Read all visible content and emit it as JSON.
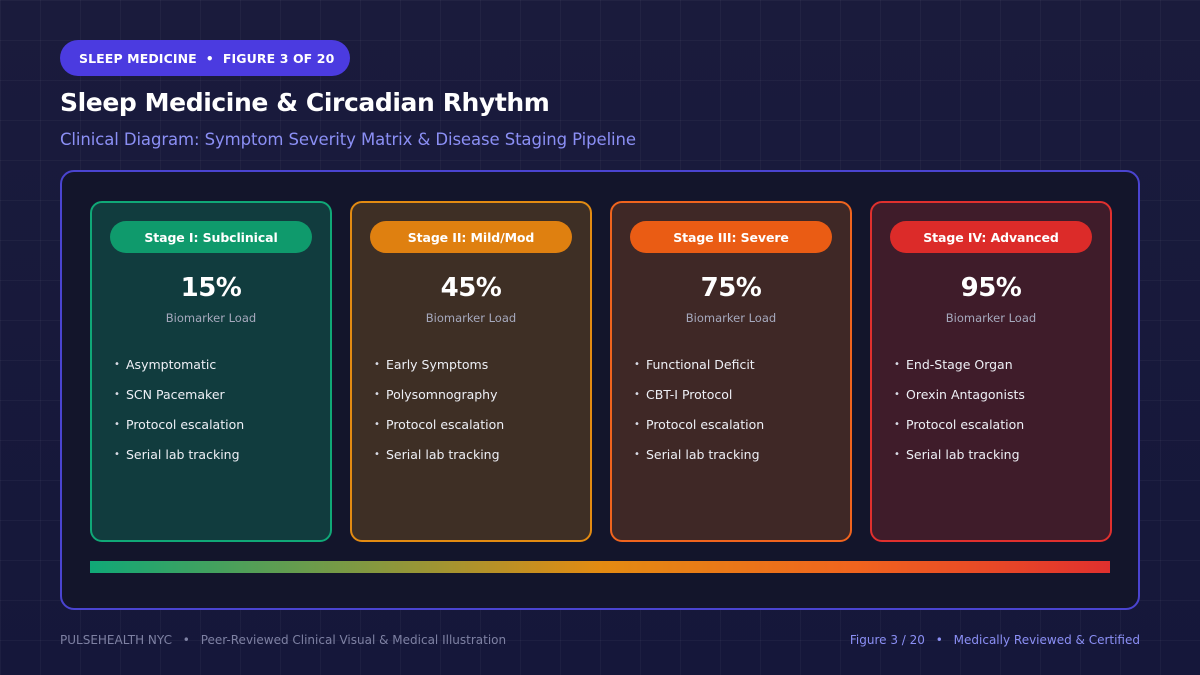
{
  "header": {
    "section": "SLEEP MEDICINE",
    "figure_label": "FIGURE 3 OF 20",
    "title": "Sleep Medicine & Circadian Rhythm",
    "subtitle": "Clinical Diagram: Symptom Severity Matrix & Disease Staging Pipeline"
  },
  "stages": [
    {
      "label": "Stage I: Subclinical",
      "value": "15%",
      "value_label": "Biomarker Load",
      "items": [
        "Asymptomatic",
        "SCN Pacemaker",
        "Protocol escalation",
        "Serial lab tracking"
      ],
      "color": "#10a877"
    },
    {
      "label": "Stage II: Mild/Mod",
      "value": "45%",
      "value_label": "Biomarker Load",
      "items": [
        "Early Symptoms",
        "Polysomnography",
        "Protocol escalation",
        "Serial lab tracking"
      ],
      "color": "#e38b12"
    },
    {
      "label": "Stage III: Severe",
      "value": "75%",
      "value_label": "Biomarker Load",
      "items": [
        "Functional Deficit",
        "CBT-I Protocol",
        "Protocol escalation",
        "Serial lab tracking"
      ],
      "color": "#f0641e"
    },
    {
      "label": "Stage IV: Advanced",
      "value": "95%",
      "value_label": "Biomarker Load",
      "items": [
        "End-Stage Organ",
        "Orexin Antagonists",
        "Protocol escalation",
        "Serial lab tracking"
      ],
      "color": "#e0302e"
    }
  ],
  "footer": {
    "org": "PULSEHEALTH NYC",
    "tagline": "Peer-Reviewed Clinical Visual & Medical Illustration",
    "figure": "Figure 3 / 20",
    "certification": "Medically Reviewed & Certified"
  },
  "colors": {
    "accent": "#4b3be0",
    "subtitle": "#8b8ff5",
    "background": "#181a38"
  }
}
